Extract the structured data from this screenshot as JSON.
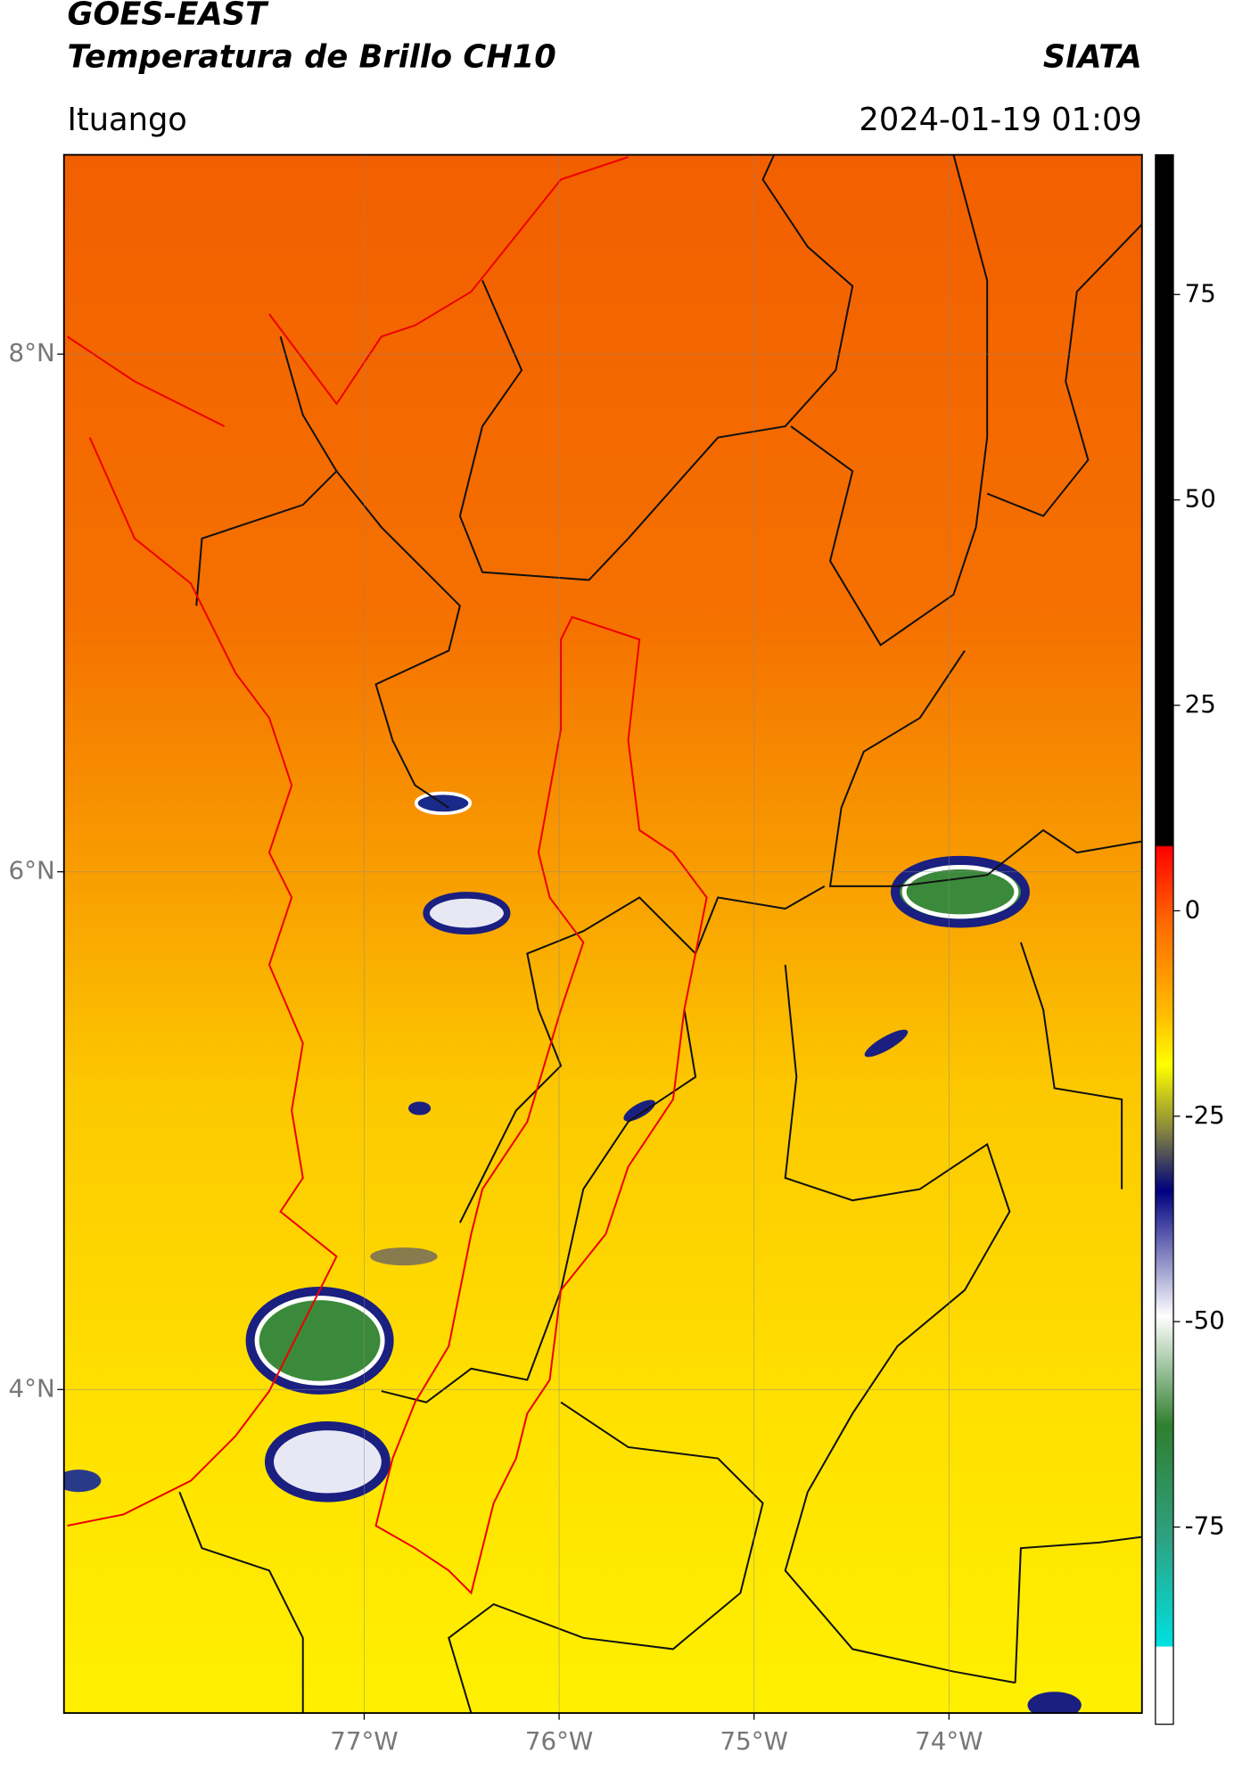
{
  "header": {
    "title": "GOES-EAST",
    "subtitle": "Temperatura de Brillo CH10",
    "source": "SIATA",
    "location": "Ituango",
    "datetime": "2024-01-19 01:09"
  },
  "map": {
    "latlim": [
      2.75,
      8.77
    ],
    "lonlim": [
      -78.54,
      -73.01
    ],
    "latticks": [
      {
        "value": 8,
        "label": "8°N"
      },
      {
        "value": 6,
        "label": "6°N"
      },
      {
        "value": 4,
        "label": "4°N"
      }
    ],
    "lonticks": [
      {
        "value": -77,
        "label": "77°W"
      },
      {
        "value": -76,
        "label": "76°W"
      },
      {
        "value": -75,
        "label": "75°W"
      },
      {
        "value": -74,
        "label": "74°W"
      }
    ],
    "grid": true
  },
  "colorbar": {
    "lim": [
      -99,
      92
    ],
    "ticks": [
      75,
      50,
      25,
      0,
      -25,
      -50,
      -75
    ]
  }
}
